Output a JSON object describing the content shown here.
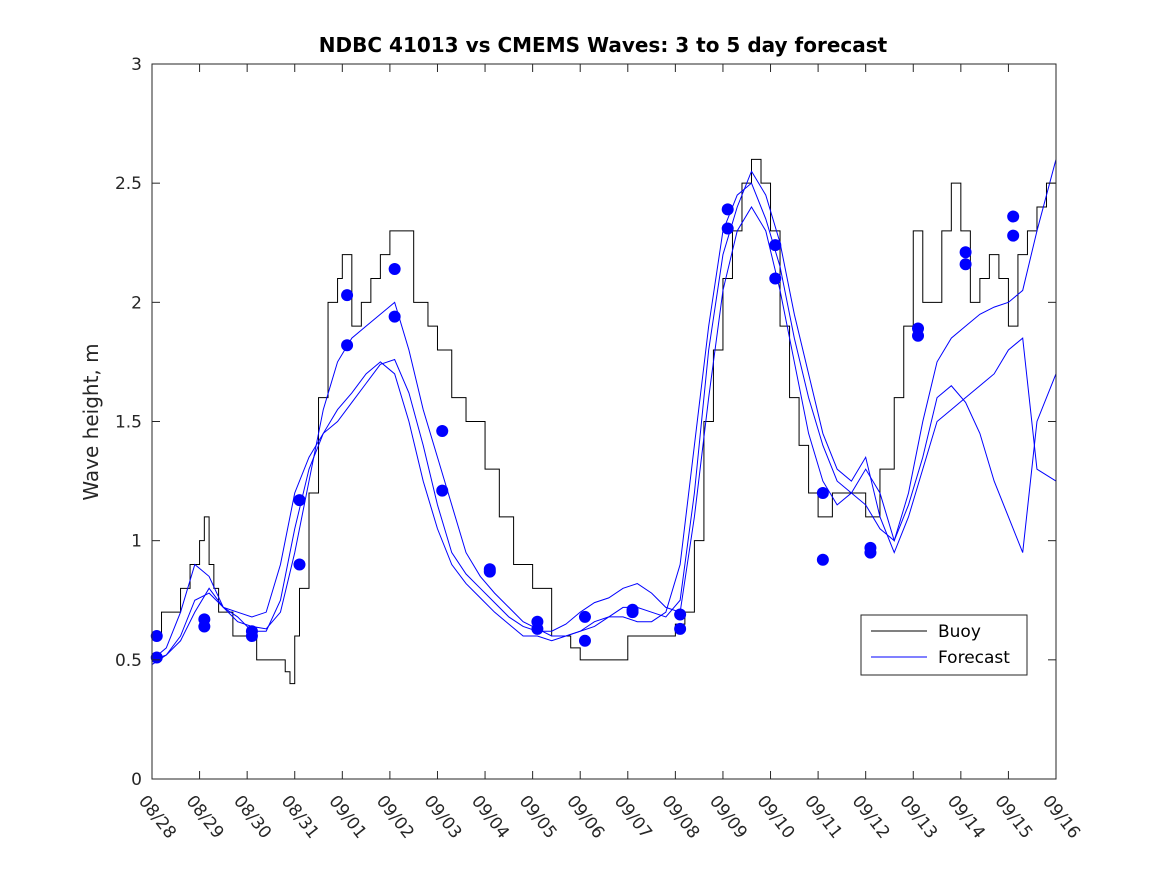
{
  "chart_data": {
    "type": "line",
    "title": "NDBC 41013 vs CMEMS Waves: 3 to 5 day forecast",
    "xlabel": "",
    "ylabel": "Wave height, m",
    "ylim": [
      0,
      3
    ],
    "xlim": [
      0,
      19
    ],
    "yticks": [
      0,
      0.5,
      1,
      1.5,
      2,
      2.5,
      3
    ],
    "ytick_labels": [
      "0",
      "0.5",
      "1",
      "1.5",
      "2",
      "2.5",
      "3"
    ],
    "xtick_labels": [
      "08/28",
      "08/29",
      "08/30",
      "08/31",
      "09/01",
      "09/02",
      "09/03",
      "09/04",
      "09/05",
      "09/06",
      "09/07",
      "09/08",
      "09/09",
      "09/10",
      "09/11",
      "09/12",
      "09/13",
      "09/14",
      "09/15",
      "09/16"
    ],
    "grid": false,
    "legend": {
      "location": "lower-right",
      "entries": [
        {
          "label": "Buoy",
          "color": "#000000"
        },
        {
          "label": "Forecast",
          "color": "#0000ff"
        }
      ]
    },
    "series": [
      {
        "name": "Buoy",
        "color": "#000000",
        "style": "step",
        "x": [
          0,
          0.2,
          0.4,
          0.6,
          0.8,
          1.0,
          1.1,
          1.2,
          1.3,
          1.4,
          1.5,
          1.7,
          2.0,
          2.2,
          2.5,
          2.8,
          2.9,
          3.0,
          3.1,
          3.3,
          3.5,
          3.7,
          3.9,
          4.0,
          4.2,
          4.4,
          4.6,
          4.8,
          5.0,
          5.2,
          5.5,
          5.8,
          6.0,
          6.3,
          6.6,
          7.0,
          7.3,
          7.6,
          8.0,
          8.4,
          8.8,
          9.0,
          9.5,
          10.0,
          10.5,
          11.0,
          11.2,
          11.4,
          11.6,
          11.8,
          12.0,
          12.2,
          12.4,
          12.6,
          12.8,
          13.0,
          13.2,
          13.4,
          13.6,
          13.8,
          14.0,
          14.3,
          14.6,
          15.0,
          15.3,
          15.6,
          15.8,
          16.0,
          16.2,
          16.4,
          16.6,
          16.8,
          17.0,
          17.2,
          17.4,
          17.6,
          17.8,
          18.0,
          18.2,
          18.4,
          18.6,
          18.8,
          19.0
        ],
        "y": [
          0.6,
          0.7,
          0.7,
          0.8,
          0.9,
          1.0,
          1.1,
          0.9,
          0.8,
          0.7,
          0.7,
          0.6,
          0.6,
          0.5,
          0.5,
          0.45,
          0.4,
          0.6,
          0.8,
          1.2,
          1.6,
          2.0,
          2.1,
          2.2,
          1.9,
          2.0,
          2.1,
          2.2,
          2.3,
          2.3,
          2.0,
          1.9,
          1.8,
          1.6,
          1.5,
          1.3,
          1.1,
          0.9,
          0.8,
          0.6,
          0.55,
          0.5,
          0.5,
          0.6,
          0.6,
          0.65,
          0.7,
          1.0,
          1.5,
          1.8,
          2.1,
          2.3,
          2.5,
          2.6,
          2.5,
          2.3,
          1.9,
          1.6,
          1.4,
          1.2,
          1.1,
          1.2,
          1.2,
          1.1,
          1.3,
          1.6,
          1.9,
          2.3,
          2.0,
          2.0,
          2.3,
          2.5,
          2.3,
          2.0,
          2.1,
          2.2,
          2.1,
          1.9,
          2.2,
          2.3,
          2.4,
          2.5,
          2.5
        ]
      },
      {
        "name": "Forecast 1",
        "color": "#0000ff",
        "x": [
          0,
          0.3,
          0.6,
          0.9,
          1.2,
          1.5,
          1.8,
          2.1,
          2.4,
          2.7,
          3.0,
          3.3,
          3.6,
          3.9,
          4.2,
          4.5,
          4.8,
          5.1,
          5.4,
          5.7,
          6.0,
          6.3,
          6.6,
          6.9,
          7.2,
          7.5,
          7.8,
          8.1,
          8.4,
          8.7,
          9.0,
          9.3,
          9.6,
          9.9,
          10.2,
          10.5,
          10.8,
          11.1,
          11.4,
          11.7,
          12.0,
          12.3,
          12.6,
          12.9,
          13.2,
          13.5,
          13.8,
          14.1,
          14.4,
          14.7,
          15.0,
          15.3,
          15.6,
          15.9,
          16.2,
          16.5,
          16.8,
          17.1,
          17.4,
          17.7,
          18.0,
          18.3,
          18.6,
          19.0
        ],
        "y": [
          0.5,
          0.52,
          0.58,
          0.7,
          0.8,
          0.72,
          0.66,
          0.64,
          0.63,
          0.7,
          0.95,
          1.25,
          1.55,
          1.75,
          1.85,
          1.9,
          1.95,
          2.0,
          1.8,
          1.55,
          1.35,
          1.15,
          0.95,
          0.85,
          0.78,
          0.72,
          0.66,
          0.63,
          0.6,
          0.6,
          0.62,
          0.66,
          0.68,
          0.68,
          0.66,
          0.66,
          0.7,
          0.9,
          1.4,
          1.9,
          2.3,
          2.45,
          2.5,
          2.35,
          2.15,
          1.85,
          1.6,
          1.4,
          1.25,
          1.2,
          1.15,
          1.05,
          1.0,
          1.2,
          1.5,
          1.75,
          1.85,
          1.9,
          1.95,
          1.98,
          2.0,
          2.05,
          2.3,
          2.6
        ]
      },
      {
        "name": "Forecast 2",
        "color": "#0000ff",
        "x": [
          0,
          0.3,
          0.6,
          0.9,
          1.2,
          1.5,
          1.8,
          2.1,
          2.4,
          2.7,
          3.0,
          3.3,
          3.6,
          3.9,
          4.2,
          4.5,
          4.8,
          5.1,
          5.4,
          5.7,
          6.0,
          6.3,
          6.6,
          6.9,
          7.2,
          7.5,
          7.8,
          8.1,
          8.4,
          8.7,
          9.0,
          9.3,
          9.6,
          9.9,
          10.2,
          10.5,
          10.8,
          11.1,
          11.4,
          11.7,
          12.0,
          12.3,
          12.6,
          12.9,
          13.2,
          13.5,
          13.8,
          14.1,
          14.4,
          14.7,
          15.0,
          15.3,
          15.6,
          15.9,
          16.2,
          16.5,
          16.8,
          17.1,
          17.4,
          17.7,
          18.0,
          18.3,
          18.6,
          19.0
        ],
        "y": [
          0.5,
          0.55,
          0.7,
          0.9,
          0.85,
          0.72,
          0.68,
          0.62,
          0.62,
          0.75,
          1.05,
          1.3,
          1.45,
          1.55,
          1.62,
          1.7,
          1.75,
          1.7,
          1.5,
          1.25,
          1.05,
          0.9,
          0.82,
          0.76,
          0.7,
          0.65,
          0.6,
          0.6,
          0.58,
          0.6,
          0.62,
          0.64,
          0.68,
          0.72,
          0.72,
          0.7,
          0.68,
          0.75,
          1.2,
          1.8,
          2.2,
          2.4,
          2.55,
          2.45,
          2.25,
          1.95,
          1.7,
          1.45,
          1.3,
          1.25,
          1.35,
          1.1,
          0.95,
          1.1,
          1.3,
          1.5,
          1.55,
          1.6,
          1.65,
          1.7,
          1.8,
          1.85,
          1.3,
          1.25
        ]
      },
      {
        "name": "Forecast 3",
        "color": "#0000ff",
        "x": [
          0,
          0.3,
          0.6,
          0.9,
          1.2,
          1.5,
          1.8,
          2.1,
          2.4,
          2.7,
          3.0,
          3.3,
          3.6,
          3.9,
          4.2,
          4.5,
          4.8,
          5.1,
          5.4,
          5.7,
          6.0,
          6.3,
          6.6,
          6.9,
          7.2,
          7.5,
          7.8,
          8.1,
          8.4,
          8.7,
          9.0,
          9.3,
          9.6,
          9.9,
          10.2,
          10.5,
          10.8,
          11.1,
          11.4,
          11.7,
          12.0,
          12.3,
          12.6,
          12.9,
          13.2,
          13.5,
          13.8,
          14.1,
          14.4,
          14.7,
          15.0,
          15.3,
          15.6,
          15.9,
          16.2,
          16.5,
          16.8,
          17.1,
          17.4,
          17.7,
          18.0,
          18.3,
          18.6,
          19.0
        ],
        "y": [
          0.48,
          0.52,
          0.6,
          0.75,
          0.78,
          0.72,
          0.7,
          0.68,
          0.7,
          0.9,
          1.2,
          1.35,
          1.45,
          1.5,
          1.58,
          1.66,
          1.74,
          1.76,
          1.62,
          1.4,
          1.15,
          0.95,
          0.86,
          0.8,
          0.74,
          0.68,
          0.64,
          0.62,
          0.62,
          0.65,
          0.7,
          0.74,
          0.76,
          0.8,
          0.82,
          0.78,
          0.72,
          0.7,
          1.1,
          1.6,
          2.05,
          2.3,
          2.4,
          2.3,
          2.05,
          1.75,
          1.45,
          1.25,
          1.15,
          1.2,
          1.3,
          1.2,
          1.0,
          1.15,
          1.35,
          1.6,
          1.65,
          1.58,
          1.45,
          1.25,
          1.1,
          0.95,
          1.5,
          1.7
        ]
      }
    ],
    "markers": {
      "name": "Forecast start points",
      "color": "#0000ff",
      "points": [
        {
          "x": 0.1,
          "y": 0.6
        },
        {
          "x": 0.1,
          "y": 0.51
        },
        {
          "x": 1.1,
          "y": 0.67
        },
        {
          "x": 1.1,
          "y": 0.64
        },
        {
          "x": 2.1,
          "y": 0.62
        },
        {
          "x": 2.1,
          "y": 0.6
        },
        {
          "x": 3.1,
          "y": 1.17
        },
        {
          "x": 3.1,
          "y": 0.9
        },
        {
          "x": 4.1,
          "y": 2.03
        },
        {
          "x": 4.1,
          "y": 1.82
        },
        {
          "x": 5.1,
          "y": 2.14
        },
        {
          "x": 5.1,
          "y": 1.94
        },
        {
          "x": 6.1,
          "y": 1.46
        },
        {
          "x": 6.1,
          "y": 1.21
        },
        {
          "x": 7.1,
          "y": 0.88
        },
        {
          "x": 7.1,
          "y": 0.87
        },
        {
          "x": 8.1,
          "y": 0.66
        },
        {
          "x": 8.1,
          "y": 0.63
        },
        {
          "x": 9.1,
          "y": 0.68
        },
        {
          "x": 9.1,
          "y": 0.58
        },
        {
          "x": 10.1,
          "y": 0.71
        },
        {
          "x": 10.1,
          "y": 0.7
        },
        {
          "x": 11.1,
          "y": 0.69
        },
        {
          "x": 11.1,
          "y": 0.63
        },
        {
          "x": 12.1,
          "y": 2.39
        },
        {
          "x": 12.1,
          "y": 2.31
        },
        {
          "x": 13.1,
          "y": 2.24
        },
        {
          "x": 13.1,
          "y": 2.1
        },
        {
          "x": 14.1,
          "y": 1.2
        },
        {
          "x": 14.1,
          "y": 0.92
        },
        {
          "x": 15.1,
          "y": 0.97
        },
        {
          "x": 15.1,
          "y": 0.95
        },
        {
          "x": 16.1,
          "y": 1.89
        },
        {
          "x": 16.1,
          "y": 1.86
        },
        {
          "x": 17.1,
          "y": 2.21
        },
        {
          "x": 17.1,
          "y": 2.16
        },
        {
          "x": 18.1,
          "y": 2.36
        },
        {
          "x": 18.1,
          "y": 2.28
        }
      ]
    }
  }
}
